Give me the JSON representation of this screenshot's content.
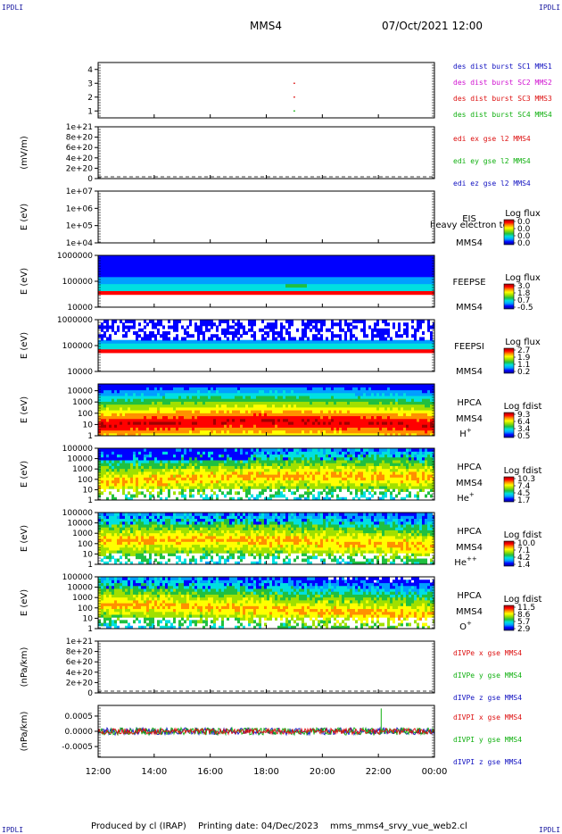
{
  "corners": {
    "tl": "IPDLI",
    "tr": "IPDLI",
    "bl": "IPDLI",
    "br": "IPDLI"
  },
  "header": {
    "mission": "MMS4",
    "datetime": "07/Oct/2021 12:00"
  },
  "footer": {
    "produced_by": "Produced by cl (IRAP)",
    "printing_date": "Printing date: 04/Dec/2023",
    "file": "mms_mms4_srvy_vue_web2.cl"
  },
  "colors": {
    "blue": "#1010c0",
    "magenta": "#d010d0",
    "red": "#dd1010",
    "green": "#10b010",
    "palette": [
      "#0a0a8c",
      "#0000ff",
      "#00a0ff",
      "#00e0e0",
      "#20c040",
      "#a0e000",
      "#ffff00",
      "#ff9000",
      "#ff0000",
      "#a00000"
    ]
  },
  "chart_data": [
    {
      "type": "line",
      "id": "burst",
      "yticks": [
        "1",
        "2",
        "3",
        "4"
      ],
      "ylim": [
        0.5,
        4.5
      ],
      "ylabel": "",
      "legend": [
        {
          "text": "des dist burst SC1 MMS1",
          "color": "blue"
        },
        {
          "text": "des dist burst SC2 MMS2",
          "color": "magenta"
        },
        {
          "text": "des dist burst SC3 MMS3",
          "color": "red"
        },
        {
          "text": "des dist burst SC4 MMS4",
          "color": "green"
        }
      ],
      "markers": [
        {
          "x": 19.0,
          "y": 3
        },
        {
          "x": 19.0,
          "y": 2
        },
        {
          "x": 19.0,
          "y": 1
        }
      ]
    },
    {
      "type": "line",
      "id": "efield",
      "ylabel": "(mV/m)",
      "yticks": [
        "0",
        "2e+20",
        "4e+20",
        "6e+20",
        "8e+20",
        "1e+21"
      ],
      "ylim": [
        0,
        1e+21
      ],
      "dashed_zero": true,
      "legend": [
        {
          "text": "edi ex gse l2 MMS4",
          "color": "red"
        },
        {
          "text": "edi ey gse l2 MMS4",
          "color": "green"
        },
        {
          "text": "edi ez gse l2 MMS4",
          "color": "blue"
        }
      ]
    },
    {
      "type": "heatmap",
      "id": "eis",
      "ylabel": "E (eV)",
      "log_y": true,
      "yticks": [
        "1e+04",
        "1e+05",
        "1e+06",
        "1e+07"
      ],
      "ylim": [
        10000,
        10000000
      ],
      "instrument": [
        "EIS",
        "MMS4"
      ],
      "overlay": "heavy electron to",
      "colorbar_title": "Log flux",
      "colorbar_ticks": [
        "0.0",
        "0.0",
        "0.0",
        "0.0"
      ],
      "spectrogram": null
    },
    {
      "type": "heatmap",
      "id": "feeps_e",
      "ylabel": "E (eV)",
      "log_y": true,
      "yticks": [
        "10000",
        "100000",
        "1000000"
      ],
      "ylim": [
        10000,
        1000000
      ],
      "instrument": [
        "FEEPSE",
        "MMS4"
      ],
      "colorbar_title": "Log flux",
      "colorbar_ticks": [
        "3.0",
        "1.8",
        "0.7",
        "-0.5"
      ],
      "spectrogram": {
        "style": "feepse",
        "band_low": 35000,
        "band_high": 1000000
      }
    },
    {
      "type": "heatmap",
      "id": "feeps_i",
      "ylabel": "E (eV)",
      "log_y": true,
      "yticks": [
        "10000",
        "100000",
        "1000000"
      ],
      "ylim": [
        10000,
        1000000
      ],
      "instrument": [
        "FEEPSI",
        "MMS4"
      ],
      "colorbar_title": "Log flux",
      "colorbar_ticks": [
        "2.7",
        "1.9",
        "1.1",
        "0.2"
      ],
      "spectrogram": {
        "style": "feepsi",
        "band_low": 60000,
        "band_high": 1000000
      }
    },
    {
      "type": "heatmap",
      "id": "hpca_h",
      "ylabel": "E (eV)",
      "log_y": true,
      "yticks": [
        "1",
        "10",
        "100",
        "1000",
        "10000"
      ],
      "ylim": [
        1,
        40000
      ],
      "instrument": [
        "HPCA",
        "MMS4"
      ],
      "species": "H",
      "species_sup": "+",
      "colorbar_title": "Log fdist",
      "colorbar_ticks": [
        "9.3",
        "6.4",
        "3.4",
        "0.5"
      ],
      "spectrogram": {
        "style": "hpca_h"
      }
    },
    {
      "type": "heatmap",
      "id": "hpca_he1",
      "ylabel": "E (eV)",
      "log_y": true,
      "yticks": [
        "1",
        "10",
        "100",
        "1000",
        "10000",
        "100000"
      ],
      "ylim": [
        1,
        100000
      ],
      "instrument": [
        "HPCA",
        "MMS4"
      ],
      "species": "He",
      "species_sup": "+",
      "colorbar_title": "Log fdist",
      "colorbar_ticks": [
        "10.3",
        "7.4",
        "4.5",
        "1.7"
      ],
      "spectrogram": {
        "style": "hpca_he1"
      }
    },
    {
      "type": "heatmap",
      "id": "hpca_he2",
      "ylabel": "E (eV)",
      "log_y": true,
      "yticks": [
        "1",
        "10",
        "100",
        "1000",
        "10000",
        "100000"
      ],
      "ylim": [
        1,
        100000
      ],
      "instrument": [
        "HPCA",
        "MMS4"
      ],
      "species": "He",
      "species_sup": "++",
      "colorbar_title": "Log fdist",
      "colorbar_ticks": [
        "10.0",
        "7.1",
        "4.2",
        "1.4"
      ],
      "spectrogram": {
        "style": "hpca_he2"
      }
    },
    {
      "type": "heatmap",
      "id": "hpca_o",
      "ylabel": "E (eV)",
      "log_y": true,
      "yticks": [
        "1",
        "10",
        "100",
        "1000",
        "10000",
        "100000"
      ],
      "ylim": [
        1,
        100000
      ],
      "instrument": [
        "HPCA",
        "MMS4"
      ],
      "species": "O",
      "species_sup": "+",
      "colorbar_title": "Log fdist",
      "colorbar_ticks": [
        "11.5",
        "8.6",
        "5.7",
        "2.9"
      ],
      "spectrogram": {
        "style": "hpca_o"
      }
    },
    {
      "type": "line",
      "id": "divpe",
      "ylabel": "(nPa/km)",
      "yticks": [
        "0",
        "2e+20",
        "4e+20",
        "6e+20",
        "8e+20",
        "1e+21"
      ],
      "ylim": [
        0,
        1e+21
      ],
      "dashed_zero": true,
      "legend": [
        {
          "text": "dIVPe x gse MMS4",
          "color": "red"
        },
        {
          "text": "dIVPe y gse MMS4",
          "color": "green"
        },
        {
          "text": "dIVPe z gse MMS4",
          "color": "blue"
        }
      ]
    },
    {
      "type": "line",
      "id": "divpi",
      "ylabel": "(nPa/km)",
      "yticks": [
        "-0.0005",
        "0.0000",
        "0.0005"
      ],
      "ylim": [
        -0.00085,
        0.00085
      ],
      "legend": [
        {
          "text": "dIVPI x gse MMS4",
          "color": "red"
        },
        {
          "text": "dIVPI y gse MMS4",
          "color": "green"
        },
        {
          "text": "dIVPI z gse MMS4",
          "color": "blue"
        }
      ],
      "noise": {
        "amplitude": 0.00012,
        "spike": {
          "x": 22.1,
          "value": 0.00075
        }
      }
    }
  ],
  "time_axis": {
    "ticks": [
      "12:00",
      "14:00",
      "16:00",
      "18:00",
      "20:00",
      "22:00",
      "00:00"
    ],
    "xlim": [
      12,
      24
    ]
  }
}
